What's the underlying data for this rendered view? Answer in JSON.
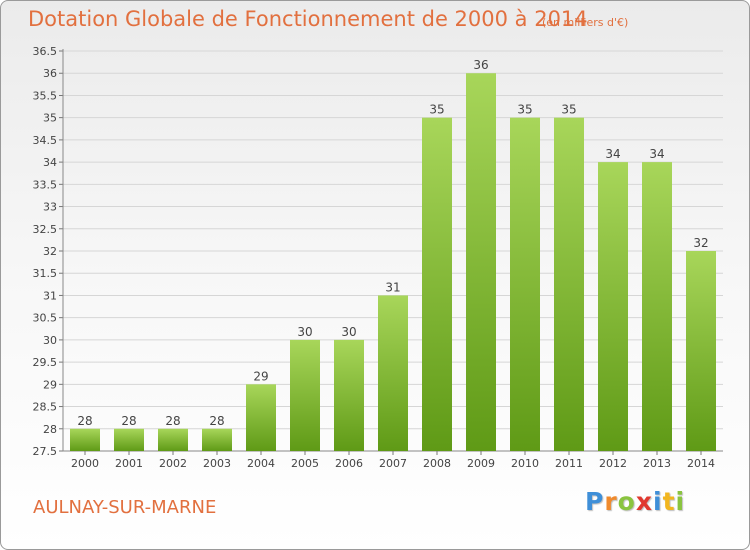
{
  "title": "Dotation Globale de Fonctionnement de 2000 à 2014",
  "subtitle": "(en milliers d'€)",
  "commune": "AULNAY-SUR-MARNE",
  "logo": {
    "letters": [
      "P",
      "r",
      "o",
      "x",
      "i",
      "t",
      "i"
    ],
    "colors": [
      "#3f8fd8",
      "#f08a2c",
      "#8ac43f",
      "#e0382f",
      "#3f8fd8",
      "#f2b61f",
      "#8ac43f"
    ]
  },
  "colors": {
    "title": "#e2703f",
    "bar_top": "#a8d65a",
    "bar_bottom": "#5f9a16",
    "grid": "#d6d6d6"
  },
  "chart_data": {
    "type": "bar",
    "title": "Dotation Globale de Fonctionnement de 2000 à 2014",
    "subtitle": "(en milliers d'€)",
    "categories": [
      "2000",
      "2001",
      "2002",
      "2003",
      "2004",
      "2005",
      "2006",
      "2007",
      "2008",
      "2009",
      "2010",
      "2011",
      "2012",
      "2013",
      "2014"
    ],
    "values": [
      28,
      28,
      28,
      28,
      29,
      30,
      30,
      31,
      35,
      36,
      35,
      35,
      34,
      34,
      32
    ],
    "labels": [
      "28",
      "28",
      "28",
      "28",
      "29",
      "30",
      "30",
      "31",
      "35",
      "36",
      "35",
      "35",
      "34",
      "34",
      "32"
    ],
    "yticks": [
      "27.5",
      "28",
      "28.5",
      "29",
      "29.5",
      "30",
      "30.5",
      "31",
      "31.5",
      "32",
      "32.5",
      "33",
      "33.5",
      "34",
      "34.5",
      "35",
      "35.5",
      "36",
      "36.5"
    ],
    "ylim": [
      27.5,
      36.5
    ],
    "xlabel": "",
    "ylabel": "",
    "grid": true
  }
}
